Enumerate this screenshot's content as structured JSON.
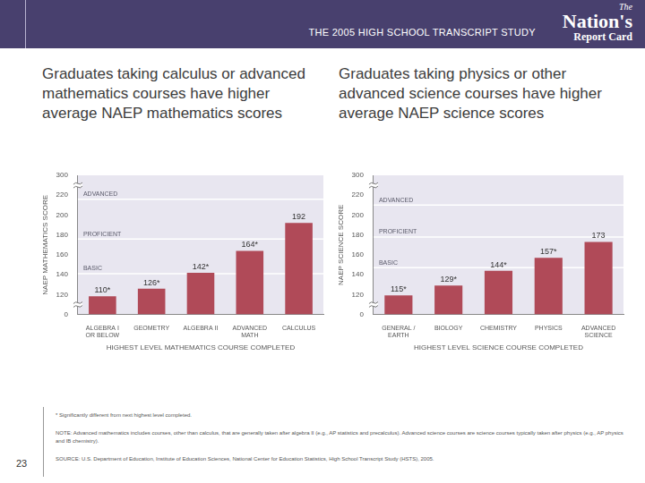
{
  "header": {
    "title": "THE 2005 HIGH SCHOOL TRANSCRIPT STUDY",
    "logo": [
      "The",
      "Nation's",
      "Report Card"
    ]
  },
  "chart_data": [
    {
      "type": "bar",
      "title": "Graduates taking calculus or advanced mathematics courses have higher average NAEP mathematics scores",
      "y_label": "NAEP MATHEMATICS SCORE",
      "x_label": "HIGHEST LEVEL MATHEMATICS COURSE COMPLETED",
      "categories": [
        "ALGEBRA I OR BELOW",
        "GEOMETRY",
        "ALGEBRA II",
        "ADVANCED MATH",
        "CALCULUS"
      ],
      "values": [
        110,
        126,
        142,
        164,
        192
      ],
      "value_labels": [
        "110*",
        "126*",
        "142*",
        "164*",
        "192"
      ],
      "color": "#b04a58",
      "ylim": [
        0,
        300
      ],
      "yticks": [
        0,
        120,
        140,
        160,
        180,
        200,
        220,
        300
      ],
      "grid": false,
      "data_labels": true,
      "levels": [
        {
          "label": "ADVANCED",
          "value": 216
        },
        {
          "label": "PROFICIENT",
          "value": 176
        },
        {
          "label": "BASIC",
          "value": 141
        }
      ]
    },
    {
      "type": "bar",
      "title": "Graduates taking physics or other advanced science courses have higher average NAEP science scores",
      "y_label": "NAEP SCIENCE SCORE",
      "x_label": "HIGHEST LEVEL SCIENCE COURSE COMPLETED",
      "categories": [
        "GENERAL / EARTH",
        "BIOLOGY",
        "CHEMISTRY",
        "PHYSICS",
        "ADVANCED SCIENCE"
      ],
      "values": [
        115,
        129,
        144,
        157,
        173
      ],
      "value_labels": [
        "115*",
        "129*",
        "144*",
        "157*",
        "173"
      ],
      "color": "#b04a58",
      "ylim": [
        0,
        300
      ],
      "yticks": [
        0,
        120,
        140,
        160,
        180,
        200,
        220,
        300
      ],
      "grid": false,
      "data_labels": true,
      "levels": [
        {
          "label": "ADVANCED",
          "value": 210
        },
        {
          "label": "PROFICIENT",
          "value": 178
        },
        {
          "label": "BASIC",
          "value": 147
        }
      ]
    }
  ],
  "footnotes": [
    "* Significantly different from next highest level completed.",
    "NOTE: Advanced mathematics includes courses, other than calculus, that are generally taken after algebra II (e.g., AP statistics and precalculus). Advanced science courses are science courses typically taken after physics (e.g., AP physics and IB chemistry).",
    "SOURCE: U.S. Department of Education, Institute of Education Sciences, National Center for Education Statistics, High School Transcript Study (HSTS), 2005."
  ],
  "page_number": "23"
}
